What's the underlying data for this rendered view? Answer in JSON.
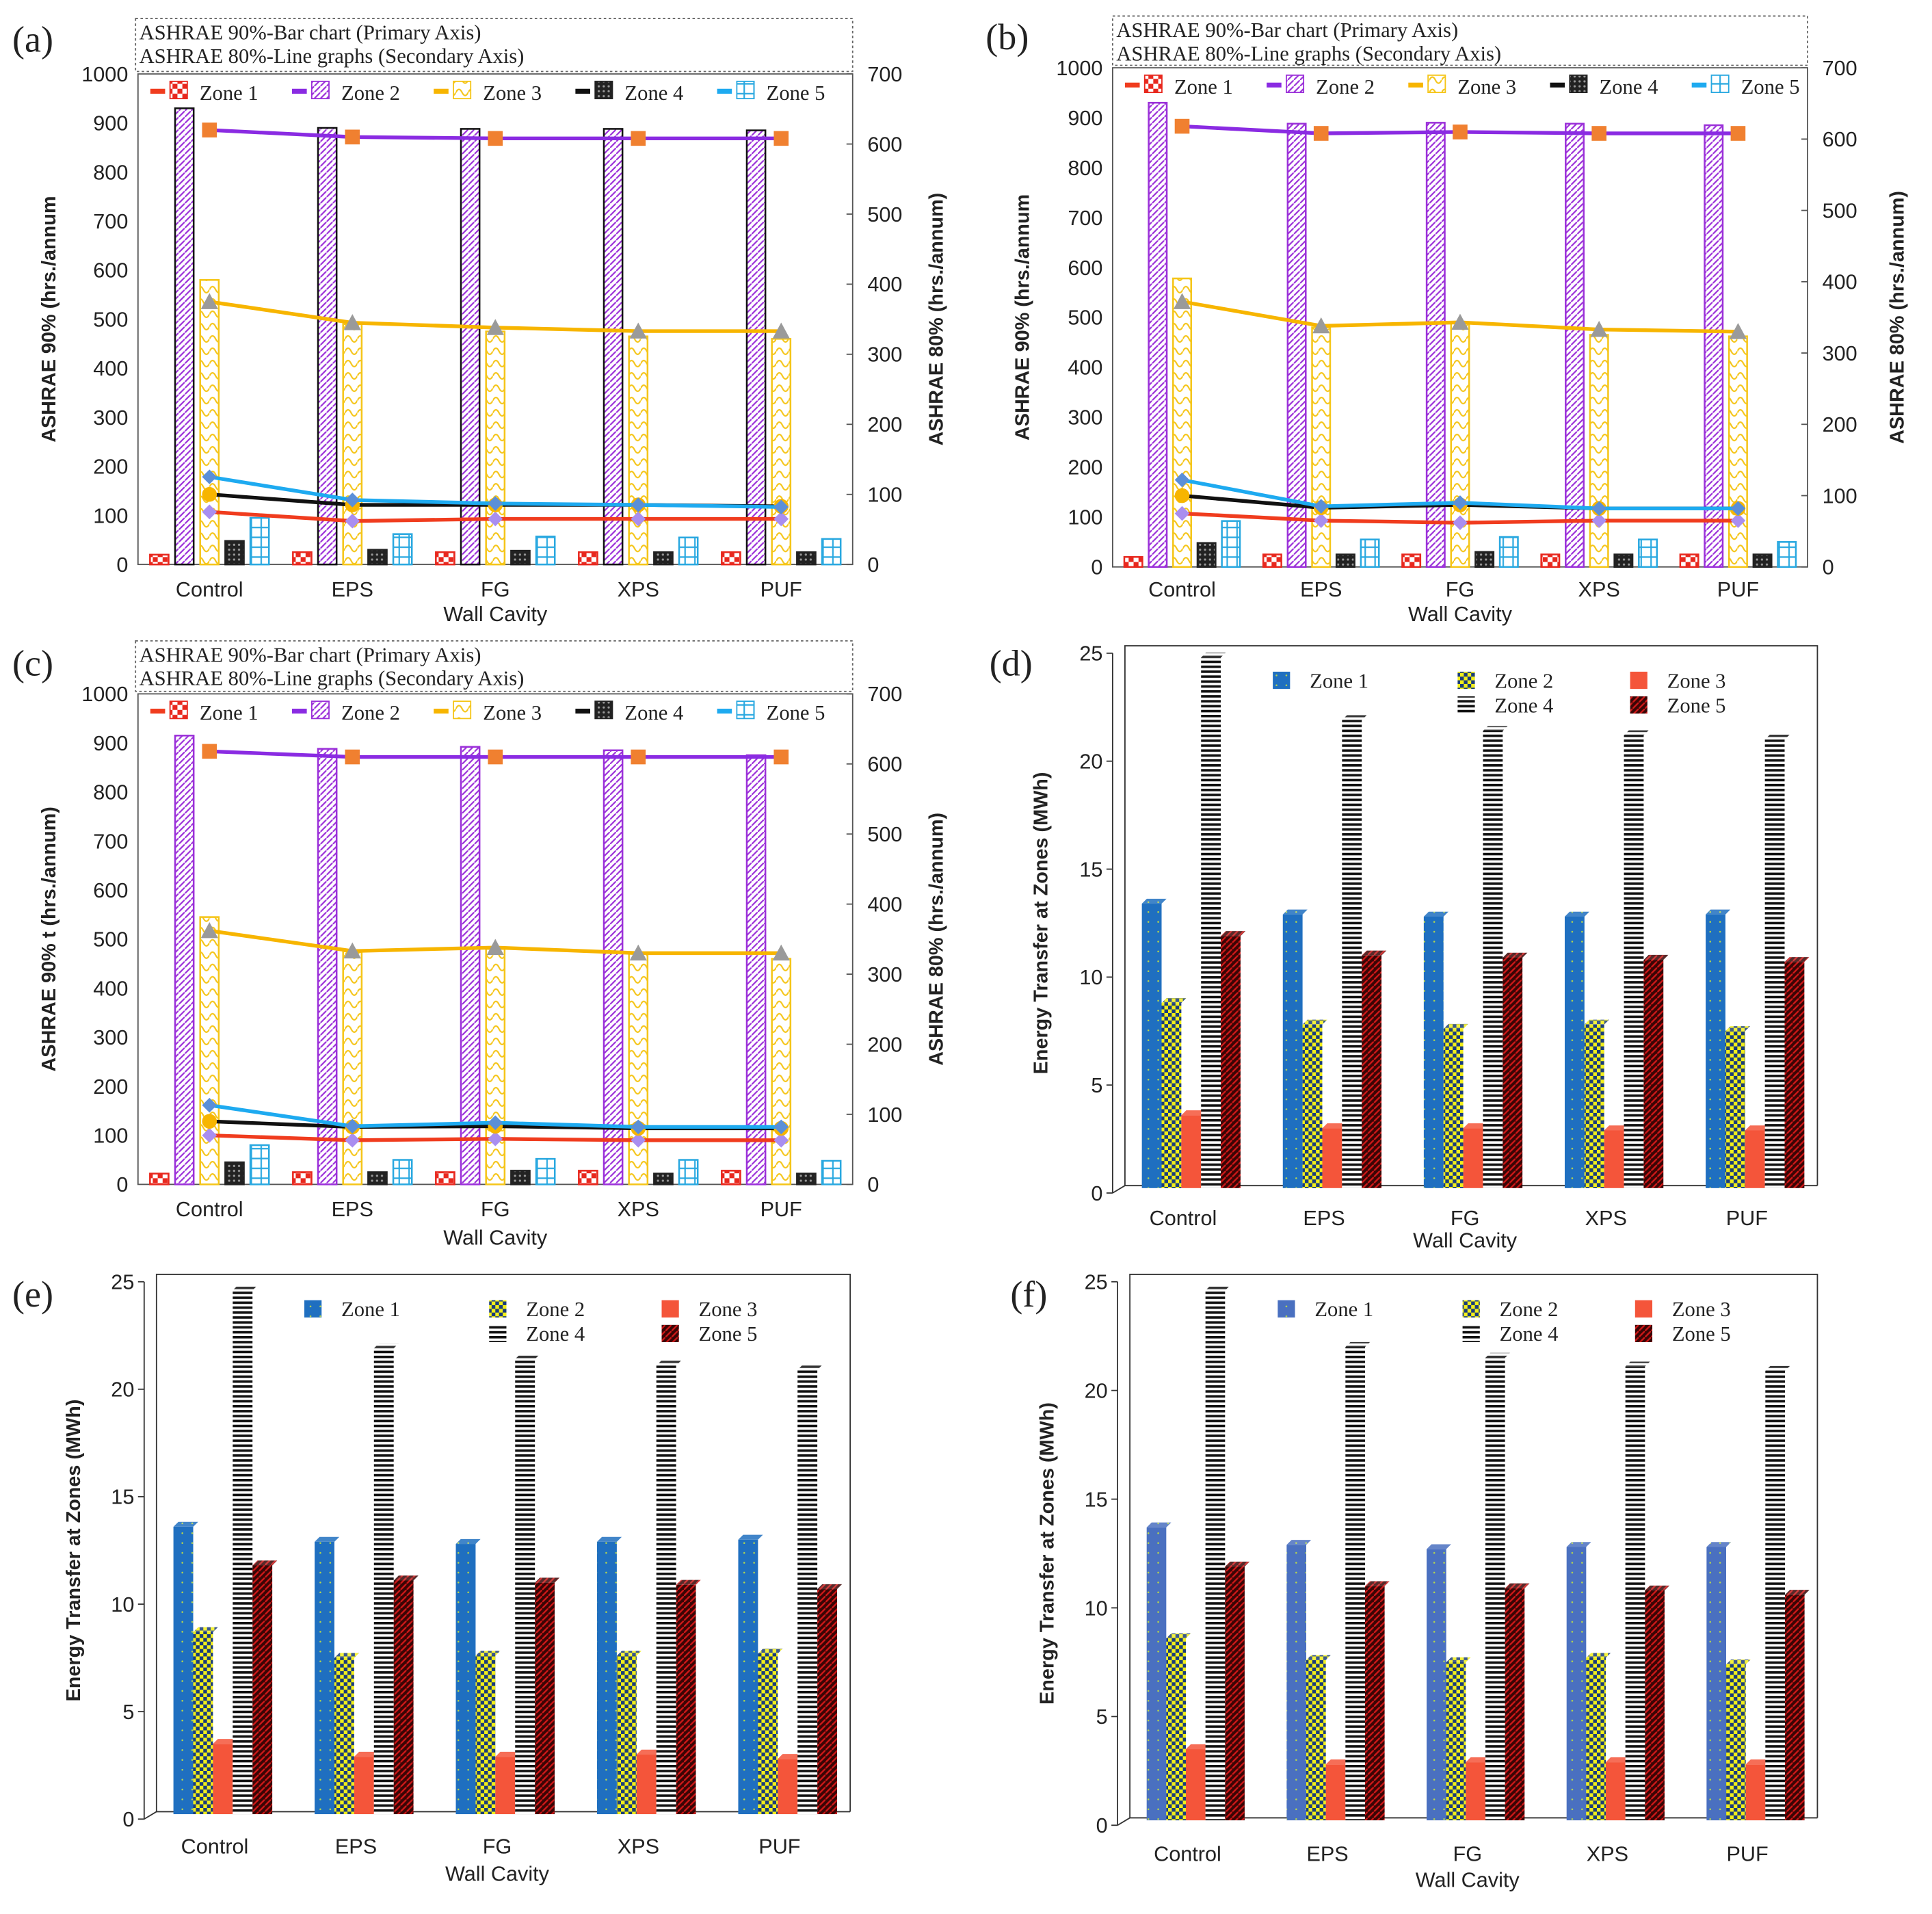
{
  "chart_data": [
    {
      "type": "bar+line",
      "panel_label": "(a)",
      "note_lines": [
        "ASHRAE  90%-Bar chart (Primary Axis)",
        "ASHRAE  80%-Line graphs (Secondary  Axis)"
      ],
      "categories": [
        "Control",
        "EPS",
        "FG",
        "XPS",
        "PUF"
      ],
      "xlabel": "Wall Cavity",
      "ylabel": "ASHRAE 90% (hrs./annum",
      "y2label": "ASHRAE 80% (hrs./annum)",
      "ylim": [
        0,
        1000
      ],
      "yticks": [
        0,
        100,
        200,
        300,
        400,
        500,
        600,
        700,
        800,
        900,
        1000
      ],
      "y2lim": [
        0,
        700
      ],
      "y2ticks": [
        0,
        100,
        200,
        300,
        400,
        500,
        600,
        700
      ],
      "legend": [
        "Zone 1",
        "Zone 2",
        "Zone 3",
        "Zone 4",
        "Zone 5"
      ],
      "legend_position": "top",
      "bar_series": [
        {
          "name": "Zone 1",
          "values": [
            20,
            25,
            25,
            25,
            25
          ]
        },
        {
          "name": "Zone 2",
          "values": [
            930,
            890,
            888,
            888,
            885
          ]
        },
        {
          "name": "Zone 3",
          "values": [
            580,
            490,
            475,
            465,
            460
          ]
        },
        {
          "name": "Zone 4",
          "values": [
            48,
            30,
            28,
            25,
            25
          ]
        },
        {
          "name": "Zone 5",
          "values": [
            95,
            62,
            57,
            55,
            52
          ]
        }
      ],
      "line_series": [
        {
          "name": "Zone 1",
          "values": [
            75,
            62,
            65,
            65,
            65
          ]
        },
        {
          "name": "Zone 2",
          "values": [
            620,
            610,
            608,
            608,
            608
          ]
        },
        {
          "name": "Zone 3",
          "values": [
            375,
            345,
            338,
            333,
            333
          ]
        },
        {
          "name": "Zone 4",
          "values": [
            100,
            85,
            85,
            85,
            83
          ]
        },
        {
          "name": "Zone 5",
          "values": [
            125,
            92,
            87,
            85,
            82
          ]
        }
      ]
    },
    {
      "type": "bar+line",
      "panel_label": "(b)",
      "note_lines": [
        "ASHRAE  90%-Bar chart (Primary Axis)",
        "ASHRAE  80%-Line graphs (Secondary  Axis)"
      ],
      "categories": [
        "Control",
        "EPS",
        "FG",
        "XPS",
        "PUF"
      ],
      "xlabel": "Wall Cavity",
      "ylabel": "ASHRAE 90% (hrs./annum",
      "y2label": "ASHRAE 80% (hrs./annum)",
      "ylim": [
        0,
        1000
      ],
      "yticks": [
        0,
        100,
        200,
        300,
        400,
        500,
        600,
        700,
        800,
        900,
        1000
      ],
      "y2lim": [
        0,
        700
      ],
      "y2ticks": [
        0,
        100,
        200,
        300,
        400,
        500,
        600,
        700
      ],
      "legend": [
        "Zone 1",
        "Zone 2",
        "Zone 3",
        "Zone 4",
        "Zone 5"
      ],
      "legend_position": "top",
      "bar_series": [
        {
          "name": "Zone 1",
          "values": [
            20,
            25,
            25,
            25,
            25
          ]
        },
        {
          "name": "Zone 2",
          "values": [
            930,
            888,
            890,
            888,
            885
          ]
        },
        {
          "name": "Zone 3",
          "values": [
            578,
            480,
            490,
            465,
            462
          ]
        },
        {
          "name": "Zone 4",
          "values": [
            48,
            25,
            30,
            25,
            25
          ]
        },
        {
          "name": "Zone 5",
          "values": [
            92,
            55,
            60,
            55,
            50
          ]
        }
      ],
      "line_series": [
        {
          "name": "Zone 1",
          "values": [
            75,
            65,
            62,
            65,
            65
          ]
        },
        {
          "name": "Zone 2",
          "values": [
            618,
            608,
            610,
            608,
            608
          ]
        },
        {
          "name": "Zone 3",
          "values": [
            372,
            338,
            343,
            333,
            330
          ]
        },
        {
          "name": "Zone 4",
          "values": [
            100,
            83,
            87,
            82,
            82
          ]
        },
        {
          "name": "Zone 5",
          "values": [
            122,
            85,
            90,
            82,
            82
          ]
        }
      ]
    },
    {
      "type": "bar+line",
      "panel_label": "(c)",
      "note_lines": [
        "ASHRAE  90%-Bar chart (Primary Axis)",
        "ASHRAE  80%-Line graphs (Secondary  Axis)"
      ],
      "categories": [
        "Control",
        "EPS",
        "FG",
        "XPS",
        "PUF"
      ],
      "xlabel": "Wall Cavity",
      "ylabel": "ASHRAE 90% t (hrs./annum)",
      "y2label": "ASHRAE 80% (hrs./annum)",
      "ylim": [
        0,
        1000
      ],
      "yticks": [
        0,
        100,
        200,
        300,
        400,
        500,
        600,
        700,
        800,
        900,
        1000
      ],
      "y2lim": [
        0,
        700
      ],
      "y2ticks": [
        0,
        100,
        200,
        300,
        400,
        500,
        600,
        700
      ],
      "legend": [
        "Zone 1",
        "Zone 2",
        "Zone 3",
        "Zone 4",
        "Zone 5"
      ],
      "legend_position": "top",
      "bar_series": [
        {
          "name": "Zone 1",
          "values": [
            22,
            25,
            25,
            28,
            28
          ]
        },
        {
          "name": "Zone 2",
          "values": [
            915,
            888,
            892,
            885,
            875
          ]
        },
        {
          "name": "Zone 3",
          "values": [
            545,
            475,
            480,
            470,
            460
          ]
        },
        {
          "name": "Zone 4",
          "values": [
            45,
            25,
            28,
            22,
            22
          ]
        },
        {
          "name": "Zone 5",
          "values": [
            80,
            50,
            52,
            50,
            48
          ]
        }
      ],
      "line_series": [
        {
          "name": "Zone 1",
          "values": [
            70,
            63,
            65,
            63,
            63
          ]
        },
        {
          "name": "Zone 2",
          "values": [
            618,
            610,
            610,
            610,
            610
          ]
        },
        {
          "name": "Zone 3",
          "values": [
            362,
            333,
            338,
            330,
            330
          ]
        },
        {
          "name": "Zone 4",
          "values": [
            90,
            82,
            83,
            80,
            80
          ]
        },
        {
          "name": "Zone 5",
          "values": [
            113,
            83,
            88,
            82,
            82
          ]
        }
      ]
    },
    {
      "type": "bar3d",
      "panel_label": "(d)",
      "categories": [
        "Control",
        "EPS",
        "FG",
        "XPS",
        "PUF"
      ],
      "xlabel": "Wall Cavity",
      "ylabel": "Energy Transfer at Zones (MWh)",
      "ylim": [
        0,
        25
      ],
      "yticks": [
        0,
        5,
        10,
        15,
        20,
        25
      ],
      "legend": [
        "Zone 1",
        "Zone 2",
        "Zone 3",
        "Zone 4",
        "Zone 5"
      ],
      "legend_position": "top",
      "series": [
        {
          "name": "Zone 1",
          "values": [
            13.4,
            12.9,
            12.8,
            12.8,
            12.9
          ]
        },
        {
          "name": "Zone 2",
          "values": [
            8.8,
            7.8,
            7.6,
            7.8,
            7.5
          ]
        },
        {
          "name": "Zone 3",
          "values": [
            3.6,
            3.0,
            3.0,
            2.9,
            2.9
          ]
        },
        {
          "name": "Zone 4",
          "values": [
            24.8,
            21.9,
            21.4,
            21.2,
            21.0
          ]
        },
        {
          "name": "Zone 5",
          "values": [
            11.9,
            11.0,
            10.9,
            10.8,
            10.7
          ]
        }
      ]
    },
    {
      "type": "bar3d",
      "panel_label": "(e)",
      "categories": [
        "Control",
        "EPS",
        "FG",
        "XPS",
        "PUF"
      ],
      "xlabel": "Wall Cavity",
      "ylabel": "Energy Transfer at Zones (MWh)",
      "ylim": [
        0,
        25
      ],
      "yticks": [
        0,
        5,
        10,
        15,
        20,
        25
      ],
      "legend": [
        "Zone 1",
        "Zone 2",
        "Zone 3",
        "Zone 4",
        "Zone 5"
      ],
      "legend_position": "top",
      "series": [
        {
          "name": "Zone 1",
          "values": [
            13.6,
            12.9,
            12.8,
            12.9,
            13.0
          ]
        },
        {
          "name": "Zone 2",
          "values": [
            8.7,
            7.5,
            7.6,
            7.6,
            7.7
          ]
        },
        {
          "name": "Zone 3",
          "values": [
            3.5,
            2.9,
            2.9,
            3.0,
            2.8
          ]
        },
        {
          "name": "Zone 4",
          "values": [
            24.6,
            21.9,
            21.4,
            21.1,
            20.9
          ]
        },
        {
          "name": "Zone 5",
          "values": [
            11.8,
            11.1,
            11.0,
            10.9,
            10.7
          ]
        }
      ]
    },
    {
      "type": "bar3d",
      "panel_label": "(f)",
      "categories": [
        "Control",
        "EPS",
        "FG",
        "XPS",
        "PUF"
      ],
      "xlabel": "Wall Cavity",
      "ylabel": "Energy Transfer at Zones (MWh)",
      "ylim": [
        0,
        25
      ],
      "yticks": [
        0,
        5,
        10,
        15,
        20,
        25
      ],
      "legend": [
        "Zone 1",
        "Zone 2",
        "Zone 3",
        "Zone 4",
        "Zone 5"
      ],
      "legend_position": "top",
      "series": [
        {
          "name": "Zone 1",
          "values": [
            13.7,
            12.9,
            12.7,
            12.8,
            12.8
          ]
        },
        {
          "name": "Zone 2",
          "values": [
            8.6,
            7.6,
            7.5,
            7.7,
            7.4
          ]
        },
        {
          "name": "Zone 3",
          "values": [
            3.5,
            2.8,
            2.9,
            2.9,
            2.8
          ]
        },
        {
          "name": "Zone 4",
          "values": [
            24.6,
            22.0,
            21.5,
            21.1,
            20.9
          ]
        },
        {
          "name": "Zone 5",
          "values": [
            11.9,
            11.0,
            10.9,
            10.8,
            10.6
          ]
        }
      ]
    }
  ],
  "colors": {
    "combo_bar": [
      "#e8281e",
      "#9b30d9",
      "#f5c518",
      "#222222",
      "#29a8e0"
    ],
    "combo_line": [
      "#f03c1e",
      "#8a2be2",
      "#f7b500",
      "#111111",
      "#1eaaf0"
    ],
    "combo_marker": [
      "#a98ef0",
      "#f08030",
      "#9a9a9a",
      "#f7b500",
      "#5b8fd8"
    ],
    "bar3d": [
      "#1f6fc0",
      "#f2ef1a",
      "#f4553a",
      "#eeeeee",
      "#7a0a0a"
    ],
    "bar3d_f_zone1": "#4a70c0"
  }
}
